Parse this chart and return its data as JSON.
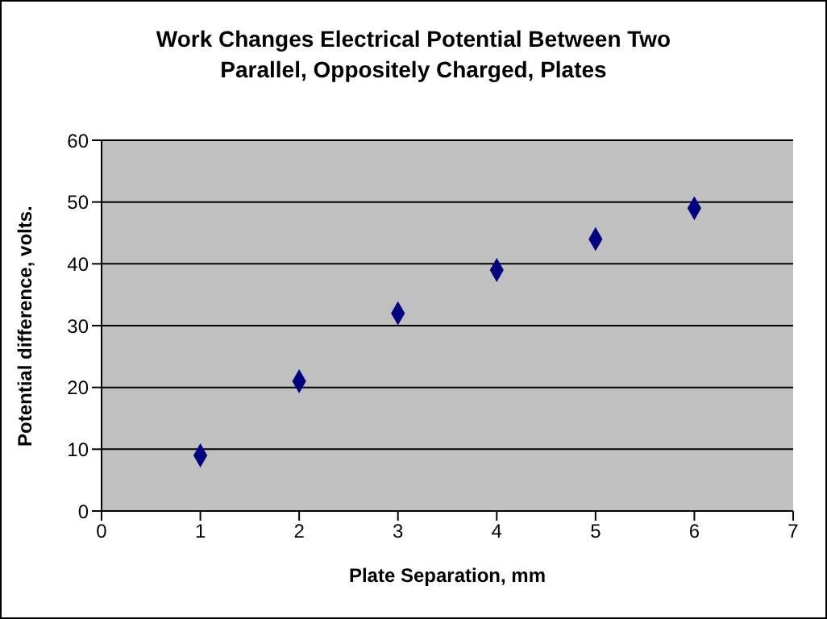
{
  "chart_data": {
    "type": "scatter",
    "title": "Work Changes Electrical Potential Between Two Parallel, Oppositely Charged, Plates",
    "xlabel": "Plate Separation, mm",
    "ylabel": "Potential difference, volts.",
    "x": [
      1,
      2,
      3,
      4,
      5,
      6
    ],
    "series": [
      {
        "color": "#000080",
        "values": [
          9,
          21,
          32,
          39,
          44,
          49
        ]
      }
    ],
    "xlim": [
      0,
      7
    ],
    "xticks": [
      0,
      1,
      2,
      3,
      4,
      5,
      6,
      7
    ],
    "ylim": [
      0,
      60
    ],
    "yticks": [
      0,
      10,
      20,
      30,
      40,
      50,
      60
    ],
    "grid": "y",
    "marker": "diamond"
  }
}
